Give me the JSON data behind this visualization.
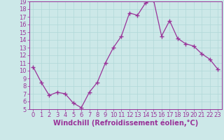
{
  "x": [
    0,
    1,
    2,
    3,
    4,
    5,
    6,
    7,
    8,
    9,
    10,
    11,
    12,
    13,
    14,
    15,
    16,
    17,
    18,
    19,
    20,
    21,
    22,
    23
  ],
  "y": [
    10.5,
    8.5,
    6.8,
    7.2,
    7.0,
    5.8,
    5.2,
    7.2,
    8.5,
    11.0,
    13.0,
    14.5,
    17.5,
    17.2,
    18.8,
    19.2,
    14.5,
    16.5,
    14.2,
    13.5,
    13.2,
    12.2,
    11.5,
    10.2
  ],
  "color": "#993399",
  "bg_color": "#cce8e8",
  "grid_color": "#b0d8d8",
  "xlabel": "Windchill (Refroidissement éolien,°C)",
  "xlim": [
    -0.5,
    23.5
  ],
  "ylim": [
    5,
    19
  ],
  "yticks": [
    5,
    6,
    7,
    8,
    9,
    10,
    11,
    12,
    13,
    14,
    15,
    16,
    17,
    18,
    19
  ],
  "xticks": [
    0,
    1,
    2,
    3,
    4,
    5,
    6,
    7,
    8,
    9,
    10,
    11,
    12,
    13,
    14,
    15,
    16,
    17,
    18,
    19,
    20,
    21,
    22,
    23
  ],
  "xlabel_fontsize": 7,
  "tick_fontsize": 6,
  "marker": "+",
  "markersize": 4,
  "linewidth": 0.9
}
